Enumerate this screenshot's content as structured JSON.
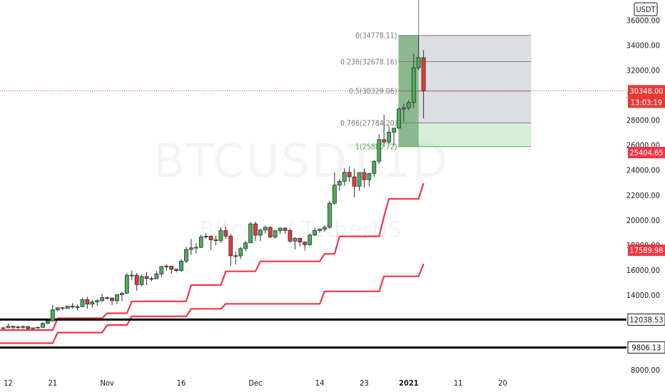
{
  "currency_label": "USDT",
  "watermark": {
    "symbol": "BTCUSDT",
    "interval": "1D",
    "name": "Bitcoin / TetherUS"
  },
  "colors": {
    "up": "#4caf50",
    "down": "#e53935",
    "supertrend": "#f23645",
    "fib_fill": "#2e7d32",
    "price_line": "#e53935"
  },
  "chart_data": {
    "type": "candlestick",
    "y_ticks": [
      8000,
      10000,
      12000,
      14000,
      16000,
      18000,
      20000,
      22000,
      24000,
      26000,
      28000,
      30000,
      32000,
      34000,
      36000
    ],
    "y_tick_labels": [
      "8000.00",
      "10000.00",
      "12000.00",
      "14000.00",
      "16000.00",
      "18000.00",
      "20000.00",
      "22000.00",
      "24000.00",
      "26000.00",
      "28000.00",
      "30000.00",
      "32000.00",
      "34000.00",
      "36000.00"
    ],
    "ylim": [
      7500,
      37500
    ],
    "x_ticks": [
      {
        "label": "12",
        "date": "2020-10-12"
      },
      {
        "label": "21",
        "date": "2020-10-21"
      },
      {
        "label": "Nov",
        "date": "2020-11-01"
      },
      {
        "label": "16",
        "date": "2020-11-16"
      },
      {
        "label": "Dec",
        "date": "2020-12-01"
      },
      {
        "label": "14",
        "date": "2020-12-14"
      },
      {
        "label": "23",
        "date": "2020-12-23"
      },
      {
        "label": "2021",
        "date": "2021-01-01",
        "bold": true
      },
      {
        "label": "11",
        "date": "2021-01-11"
      },
      {
        "label": "20",
        "date": "2021-01-20"
      }
    ],
    "candles": [
      {
        "date": "2020-10-11",
        "o": 11360,
        "h": 11450,
        "l": 11270,
        "c": 11380
      },
      {
        "date": "2020-10-12",
        "o": 11380,
        "h": 11710,
        "l": 11340,
        "c": 11510
      },
      {
        "date": "2020-10-13",
        "o": 11510,
        "h": 11530,
        "l": 11270,
        "c": 11420
      },
      {
        "date": "2020-10-14",
        "o": 11420,
        "h": 11530,
        "l": 11280,
        "c": 11460
      },
      {
        "date": "2020-10-15",
        "o": 11460,
        "h": 11580,
        "l": 11300,
        "c": 11480
      },
      {
        "date": "2020-10-16",
        "o": 11480,
        "h": 11540,
        "l": 11220,
        "c": 11310
      },
      {
        "date": "2020-10-17",
        "o": 11310,
        "h": 11400,
        "l": 11250,
        "c": 11380
      },
      {
        "date": "2020-10-18",
        "o": 11380,
        "h": 11470,
        "l": 11320,
        "c": 11420
      },
      {
        "date": "2020-10-19",
        "o": 11420,
        "h": 11800,
        "l": 11390,
        "c": 11740
      },
      {
        "date": "2020-10-20",
        "o": 11740,
        "h": 12030,
        "l": 11680,
        "c": 11920
      },
      {
        "date": "2020-10-21",
        "o": 11920,
        "h": 13220,
        "l": 11900,
        "c": 12820
      },
      {
        "date": "2020-10-22",
        "o": 12820,
        "h": 13010,
        "l": 12700,
        "c": 12990
      },
      {
        "date": "2020-10-23",
        "o": 12990,
        "h": 13030,
        "l": 12800,
        "c": 12940
      },
      {
        "date": "2020-10-24",
        "o": 12940,
        "h": 13150,
        "l": 12900,
        "c": 13120
      },
      {
        "date": "2020-10-25",
        "o": 13120,
        "h": 13350,
        "l": 12900,
        "c": 13040
      },
      {
        "date": "2020-10-26",
        "o": 13040,
        "h": 13250,
        "l": 12770,
        "c": 13070
      },
      {
        "date": "2020-10-27",
        "o": 13070,
        "h": 13800,
        "l": 13040,
        "c": 13640
      },
      {
        "date": "2020-10-28",
        "o": 13640,
        "h": 13860,
        "l": 12920,
        "c": 13280
      },
      {
        "date": "2020-10-29",
        "o": 13280,
        "h": 13640,
        "l": 12980,
        "c": 13450
      },
      {
        "date": "2020-10-30",
        "o": 13450,
        "h": 13680,
        "l": 13130,
        "c": 13560
      },
      {
        "date": "2020-10-31",
        "o": 13560,
        "h": 14100,
        "l": 13420,
        "c": 13800
      },
      {
        "date": "2020-11-01",
        "o": 13800,
        "h": 13890,
        "l": 13620,
        "c": 13760
      },
      {
        "date": "2020-11-02",
        "o": 13760,
        "h": 13820,
        "l": 13200,
        "c": 13550
      },
      {
        "date": "2020-11-03",
        "o": 13550,
        "h": 14070,
        "l": 13290,
        "c": 14030
      },
      {
        "date": "2020-11-04",
        "o": 14030,
        "h": 14250,
        "l": 13520,
        "c": 14150
      },
      {
        "date": "2020-11-05",
        "o": 14150,
        "h": 15780,
        "l": 14100,
        "c": 15590
      },
      {
        "date": "2020-11-06",
        "o": 15590,
        "h": 15970,
        "l": 15210,
        "c": 15590
      },
      {
        "date": "2020-11-07",
        "o": 15590,
        "h": 15770,
        "l": 14340,
        "c": 14840
      },
      {
        "date": "2020-11-08",
        "o": 14840,
        "h": 15650,
        "l": 14700,
        "c": 15480
      },
      {
        "date": "2020-11-09",
        "o": 15480,
        "h": 15850,
        "l": 14810,
        "c": 15330
      },
      {
        "date": "2020-11-10",
        "o": 15330,
        "h": 15480,
        "l": 15100,
        "c": 15310
      },
      {
        "date": "2020-11-11",
        "o": 15310,
        "h": 15950,
        "l": 15280,
        "c": 15700
      },
      {
        "date": "2020-11-12",
        "o": 15700,
        "h": 16340,
        "l": 15440,
        "c": 16280
      },
      {
        "date": "2020-11-13",
        "o": 16280,
        "h": 16480,
        "l": 15950,
        "c": 16320
      },
      {
        "date": "2020-11-14",
        "o": 16320,
        "h": 16330,
        "l": 15710,
        "c": 16070
      },
      {
        "date": "2020-11-15",
        "o": 16070,
        "h": 16140,
        "l": 15820,
        "c": 15960
      },
      {
        "date": "2020-11-16",
        "o": 15960,
        "h": 16880,
        "l": 15870,
        "c": 16720
      },
      {
        "date": "2020-11-17",
        "o": 16720,
        "h": 17860,
        "l": 16570,
        "c": 17650
      },
      {
        "date": "2020-11-18",
        "o": 17650,
        "h": 18480,
        "l": 17210,
        "c": 17780
      },
      {
        "date": "2020-11-19",
        "o": 17780,
        "h": 18180,
        "l": 17340,
        "c": 17820
      },
      {
        "date": "2020-11-20",
        "o": 17820,
        "h": 18820,
        "l": 17760,
        "c": 18650
      },
      {
        "date": "2020-11-21",
        "o": 18650,
        "h": 18960,
        "l": 18520,
        "c": 18710
      },
      {
        "date": "2020-11-22",
        "o": 18710,
        "h": 18750,
        "l": 17610,
        "c": 18420
      },
      {
        "date": "2020-11-23",
        "o": 18420,
        "h": 18770,
        "l": 18000,
        "c": 18370
      },
      {
        "date": "2020-11-24",
        "o": 18370,
        "h": 19420,
        "l": 18180,
        "c": 19160
      },
      {
        "date": "2020-11-25",
        "o": 19160,
        "h": 19480,
        "l": 18500,
        "c": 18720
      },
      {
        "date": "2020-11-26",
        "o": 18720,
        "h": 18910,
        "l": 16330,
        "c": 17150
      },
      {
        "date": "2020-11-27",
        "o": 17150,
        "h": 17470,
        "l": 16450,
        "c": 17140
      },
      {
        "date": "2020-11-28",
        "o": 17140,
        "h": 17850,
        "l": 16880,
        "c": 17720
      },
      {
        "date": "2020-11-29",
        "o": 17720,
        "h": 18350,
        "l": 17520,
        "c": 18180
      },
      {
        "date": "2020-11-30",
        "o": 18180,
        "h": 19860,
        "l": 18180,
        "c": 19700
      },
      {
        "date": "2020-12-01",
        "o": 19700,
        "h": 19890,
        "l": 18330,
        "c": 18790
      },
      {
        "date": "2020-12-02",
        "o": 18790,
        "h": 19300,
        "l": 18330,
        "c": 19210
      },
      {
        "date": "2020-12-03",
        "o": 19210,
        "h": 19570,
        "l": 18930,
        "c": 19420
      },
      {
        "date": "2020-12-04",
        "o": 19420,
        "h": 19500,
        "l": 18570,
        "c": 18650
      },
      {
        "date": "2020-12-05",
        "o": 18650,
        "h": 19180,
        "l": 18500,
        "c": 19150
      },
      {
        "date": "2020-12-06",
        "o": 19150,
        "h": 19420,
        "l": 18900,
        "c": 19360
      },
      {
        "date": "2020-12-07",
        "o": 19360,
        "h": 19420,
        "l": 18900,
        "c": 19170
      },
      {
        "date": "2020-12-08",
        "o": 19170,
        "h": 19290,
        "l": 18200,
        "c": 18320
      },
      {
        "date": "2020-12-09",
        "o": 18320,
        "h": 18640,
        "l": 17650,
        "c": 18550
      },
      {
        "date": "2020-12-10",
        "o": 18550,
        "h": 18560,
        "l": 17910,
        "c": 18250
      },
      {
        "date": "2020-12-11",
        "o": 18250,
        "h": 18290,
        "l": 17570,
        "c": 18030
      },
      {
        "date": "2020-12-12",
        "o": 18030,
        "h": 18950,
        "l": 17950,
        "c": 18800
      },
      {
        "date": "2020-12-13",
        "o": 18800,
        "h": 19410,
        "l": 18730,
        "c": 19170
      },
      {
        "date": "2020-12-14",
        "o": 19170,
        "h": 19350,
        "l": 19000,
        "c": 19270
      },
      {
        "date": "2020-12-15",
        "o": 19270,
        "h": 19570,
        "l": 19050,
        "c": 19430
      },
      {
        "date": "2020-12-16",
        "o": 19430,
        "h": 21560,
        "l": 19290,
        "c": 21350
      },
      {
        "date": "2020-12-17",
        "o": 21350,
        "h": 23800,
        "l": 21230,
        "c": 22800
      },
      {
        "date": "2020-12-18",
        "o": 22800,
        "h": 23290,
        "l": 22350,
        "c": 23110
      },
      {
        "date": "2020-12-19",
        "o": 23110,
        "h": 24170,
        "l": 22750,
        "c": 23820
      },
      {
        "date": "2020-12-20",
        "o": 23820,
        "h": 24300,
        "l": 23060,
        "c": 23460
      },
      {
        "date": "2020-12-21",
        "o": 23460,
        "h": 24100,
        "l": 21820,
        "c": 22710
      },
      {
        "date": "2020-12-22",
        "o": 22710,
        "h": 23840,
        "l": 22350,
        "c": 23810
      },
      {
        "date": "2020-12-23",
        "o": 23810,
        "h": 24130,
        "l": 22600,
        "c": 23230
      },
      {
        "date": "2020-12-24",
        "o": 23230,
        "h": 23780,
        "l": 22700,
        "c": 23730
      },
      {
        "date": "2020-12-25",
        "o": 23730,
        "h": 24790,
        "l": 23430,
        "c": 24710
      },
      {
        "date": "2020-12-26",
        "o": 24710,
        "h": 26870,
        "l": 24500,
        "c": 26440
      },
      {
        "date": "2020-12-27",
        "o": 26440,
        "h": 28420,
        "l": 25880,
        "c": 26250
      },
      {
        "date": "2020-12-28",
        "o": 26250,
        "h": 27500,
        "l": 26100,
        "c": 27040
      },
      {
        "date": "2020-12-29",
        "o": 27040,
        "h": 27370,
        "l": 25990,
        "c": 27360
      },
      {
        "date": "2020-12-30",
        "o": 27360,
        "h": 29020,
        "l": 27320,
        "c": 28890
      },
      {
        "date": "2020-12-31",
        "o": 28890,
        "h": 29300,
        "l": 27850,
        "c": 28990
      },
      {
        "date": "2021-01-01",
        "o": 28990,
        "h": 29600,
        "l": 28800,
        "c": 29410
      },
      {
        "date": "2021-01-02",
        "o": 29410,
        "h": 33300,
        "l": 28950,
        "c": 32190
      },
      {
        "date": "2021-01-03",
        "o": 32190,
        "h": 34778,
        "l": 32010,
        "c": 33000
      },
      {
        "date": "2021-01-04",
        "o": 33000,
        "h": 33600,
        "l": 28130,
        "c": 30348
      }
    ],
    "fib_levels": [
      {
        "ratio": "0",
        "price": 34778.11,
        "label": "0(34778.11)"
      },
      {
        "ratio": "0.236",
        "price": 32678.16,
        "label": "0.236(32678.16)"
      },
      {
        "ratio": "0.5",
        "price": 30329.06,
        "label": "0.5(30329.06)"
      },
      {
        "ratio": "0.786",
        "price": 27784.2,
        "label": "0.786(27784.20)"
      },
      {
        "ratio": "1",
        "price": 25880.72,
        "label": "1(25880.72)"
      }
    ],
    "fib_extend_to": "2021-01-20",
    "supertrend_upper": [
      [
        "2020-10-09",
        11200
      ],
      [
        "2020-10-21",
        11200
      ],
      [
        "2020-10-22",
        12150
      ],
      [
        "2020-10-31",
        12150
      ],
      [
        "2020-11-01",
        12550
      ],
      [
        "2020-11-05",
        12550
      ],
      [
        "2020-11-06",
        13500
      ],
      [
        "2020-11-17",
        13500
      ],
      [
        "2020-11-18",
        14800
      ],
      [
        "2020-11-24",
        14800
      ],
      [
        "2020-11-25",
        15900
      ],
      [
        "2020-12-01",
        15900
      ],
      [
        "2020-12-02",
        16700
      ],
      [
        "2020-12-14",
        16700
      ],
      [
        "2020-12-15",
        17300
      ],
      [
        "2020-12-17",
        17300
      ],
      [
        "2020-12-18",
        18700
      ],
      [
        "2020-12-26",
        18700
      ],
      [
        "2020-12-27",
        20300
      ],
      [
        "2020-12-28",
        21700
      ],
      [
        "2021-01-03",
        21700
      ],
      [
        "2021-01-04",
        22960
      ]
    ],
    "supertrend_lower": [
      [
        "2020-10-09",
        10150
      ],
      [
        "2020-10-21",
        10150
      ],
      [
        "2020-10-22",
        11000
      ],
      [
        "2020-10-31",
        11000
      ],
      [
        "2020-11-01",
        11600
      ],
      [
        "2020-11-05",
        11600
      ],
      [
        "2020-11-06",
        12300
      ],
      [
        "2020-11-17",
        12300
      ],
      [
        "2020-11-18",
        12900
      ],
      [
        "2020-11-24",
        12900
      ],
      [
        "2020-11-25",
        13300
      ],
      [
        "2020-12-14",
        13300
      ],
      [
        "2020-12-15",
        14300
      ],
      [
        "2020-12-26",
        14300
      ],
      [
        "2020-12-27",
        15500
      ],
      [
        "2021-01-03",
        15500
      ],
      [
        "2021-01-04",
        16500
      ]
    ],
    "horizontal_lines": [
      {
        "price": 12038.53,
        "label": "12038.53"
      },
      {
        "price": 9806.13,
        "label": "9806.13"
      }
    ],
    "price_tags": [
      {
        "price": 30348.0,
        "label": "30348.00",
        "countdown": "13:03:19",
        "style": "last"
      },
      {
        "price": 25404.65,
        "label": "25404.65",
        "style": "red"
      },
      {
        "price": 17589.98,
        "label": "17589.98",
        "style": "red"
      },
      {
        "price": 12038.53,
        "label": "12038.53",
        "style": "plain"
      },
      {
        "price": 9806.13,
        "label": "9806.13",
        "style": "plain"
      }
    ]
  }
}
